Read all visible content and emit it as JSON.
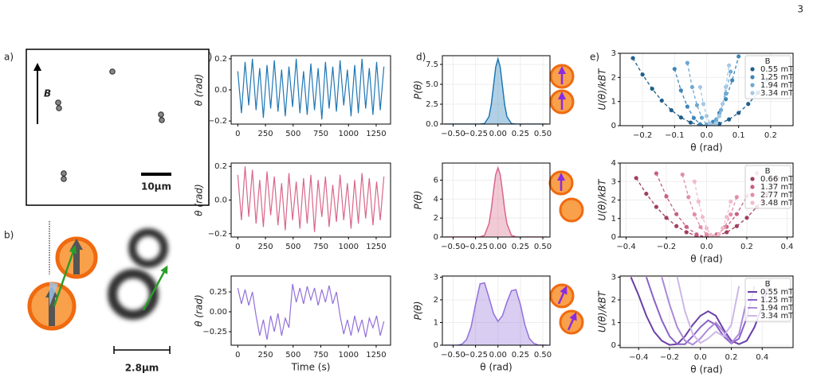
{
  "page_number": "3",
  "panel_labels": [
    "a)",
    "b)",
    "c)",
    "d)",
    "e)"
  ],
  "panel_a": {
    "field_label": "B",
    "scale_label": "10μm"
  },
  "panel_b": {
    "scale_label": "2.8μm"
  },
  "chart_data": [
    {
      "type": "line",
      "color": "#1f77b4",
      "ylabel": "θ (rad)",
      "xlim": [
        -60,
        1380
      ],
      "ylim": [
        -0.22,
        0.22
      ],
      "xticks": [
        0,
        250,
        500,
        750,
        1000,
        1250
      ],
      "yticks": [
        {
          "value": -0.2,
          "label": "−0.2"
        },
        {
          "value": 0,
          "label": "0.0"
        },
        0.2
      ],
      "x": [
        0,
        33,
        66,
        99,
        132,
        165,
        198,
        231,
        264,
        297,
        330,
        363,
        396,
        429,
        462,
        495,
        528,
        561,
        594,
        627,
        660,
        693,
        726,
        759,
        792,
        825,
        858,
        891,
        924,
        957,
        990,
        1023,
        1056,
        1089,
        1122,
        1155,
        1188,
        1221,
        1254,
        1287,
        1320
      ],
      "values": [
        0.12,
        -0.15,
        0.18,
        -0.1,
        0.2,
        -0.13,
        0.14,
        -0.18,
        0.16,
        -0.12,
        0.19,
        -0.14,
        0.13,
        -0.17,
        0.15,
        -0.11,
        0.2,
        -0.15,
        0.12,
        -0.16,
        0.17,
        -0.13,
        0.14,
        -0.19,
        0.18,
        -0.12,
        0.15,
        -0.14,
        0.19,
        -0.1,
        0.13,
        -0.17,
        0.16,
        -0.15,
        0.2,
        -0.12,
        0.14,
        -0.16,
        0.18,
        -0.13,
        0.15
      ]
    },
    {
      "type": "line",
      "color": "#d9668a",
      "ylabel": "θ (rad)",
      "xlim": [
        -60,
        1380
      ],
      "ylim": [
        -0.22,
        0.22
      ],
      "xticks": [
        0,
        250,
        500,
        750,
        1000,
        1250
      ],
      "yticks": [
        {
          "value": -0.2,
          "label": "−0.2"
        },
        {
          "value": 0,
          "label": "0.0"
        },
        0.2
      ],
      "x": [
        0,
        33,
        66,
        99,
        132,
        165,
        198,
        231,
        264,
        297,
        330,
        363,
        396,
        429,
        462,
        495,
        528,
        561,
        594,
        627,
        660,
        693,
        726,
        759,
        792,
        825,
        858,
        891,
        924,
        957,
        990,
        1023,
        1056,
        1089,
        1122,
        1155,
        1188,
        1221,
        1254,
        1287,
        1320
      ],
      "values": [
        0.15,
        -0.12,
        0.2,
        -0.1,
        0.18,
        -0.14,
        0.12,
        -0.16,
        0.17,
        -0.09,
        0.14,
        -0.15,
        0.1,
        -0.18,
        0.16,
        -0.12,
        0.11,
        -0.17,
        0.13,
        -0.14,
        0.15,
        -0.19,
        0.12,
        -0.1,
        0.14,
        -0.16,
        0.09,
        -0.13,
        0.15,
        -0.12,
        0.1,
        -0.17,
        0.12,
        -0.14,
        0.16,
        -0.11,
        0.13,
        -0.15,
        0.11,
        -0.12,
        0.14
      ]
    },
    {
      "type": "line",
      "color": "#9370db",
      "ylabel": "θ (rad)",
      "xlabel": "Time (s)",
      "xlim": [
        -60,
        1380
      ],
      "ylim": [
        -0.42,
        0.45
      ],
      "xticks": [
        0,
        250,
        500,
        750,
        1000,
        1250
      ],
      "yticks": [
        {
          "value": -0.25,
          "label": "−0.25"
        },
        {
          "value": 0,
          "label": "0.00"
        },
        0.25
      ],
      "x": [
        0,
        33,
        66,
        99,
        132,
        165,
        198,
        231,
        264,
        297,
        330,
        363,
        396,
        429,
        462,
        495,
        528,
        561,
        594,
        627,
        660,
        693,
        726,
        759,
        792,
        825,
        858,
        891,
        924,
        957,
        990,
        1023,
        1056,
        1089,
        1122,
        1155,
        1188,
        1221,
        1254,
        1287,
        1320
      ],
      "values": [
        0.3,
        0.1,
        0.28,
        0.08,
        0.25,
        -0.05,
        -0.3,
        -0.1,
        -0.35,
        -0.05,
        -0.25,
        -0.02,
        -0.3,
        -0.08,
        -0.2,
        0.35,
        0.12,
        0.3,
        0.1,
        0.32,
        0.15,
        0.3,
        0.08,
        0.28,
        0.12,
        0.33,
        0.1,
        0.25,
        -0.05,
        -0.28,
        -0.1,
        -0.3,
        -0.05,
        -0.25,
        -0.1,
        -0.32,
        -0.08,
        -0.2,
        -0.05,
        -0.3,
        -0.12
      ]
    },
    {
      "type": "area",
      "color": "#1f77b4",
      "ylabel": "P(θ)",
      "grid": true,
      "xlim": [
        -0.62,
        0.58
      ],
      "ylim": [
        0,
        8.6
      ],
      "xticks": [
        {
          "value": -0.5,
          "label": "−0.50"
        },
        {
          "value": -0.25,
          "label": "−0.25"
        },
        {
          "value": 0,
          "label": "0.00"
        },
        0.25,
        {
          "value": 0.5,
          "label": "0.50"
        }
      ],
      "yticks": [
        {
          "value": 0,
          "label": "0.0"
        },
        2.5,
        {
          "value": 5,
          "label": "5.0"
        },
        7.5
      ],
      "x": [
        -0.6,
        -0.2,
        -0.15,
        -0.1,
        -0.075,
        -0.05,
        -0.025,
        0,
        0.025,
        0.05,
        0.075,
        0.1,
        0.15,
        0.2,
        0.55
      ],
      "values": [
        0,
        0,
        0.06,
        0.94,
        2.42,
        4.78,
        7.16,
        8.2,
        7.16,
        4.78,
        2.42,
        0.94,
        0.06,
        0,
        0
      ]
    },
    {
      "type": "area",
      "color": "#d9668a",
      "ylabel": "P(θ)",
      "grid": true,
      "xlim": [
        -0.62,
        0.58
      ],
      "ylim": [
        0,
        7.8
      ],
      "xticks": [
        {
          "value": -0.5,
          "label": "−0.50"
        },
        {
          "value": -0.25,
          "label": "−0.25"
        },
        {
          "value": 0,
          "label": "0.00"
        },
        0.25,
        {
          "value": 0.5,
          "label": "0.50"
        }
      ],
      "yticks": [
        0,
        2,
        4,
        6
      ],
      "x": [
        -0.6,
        -0.2,
        -0.15,
        -0.1,
        -0.075,
        -0.05,
        -0.025,
        0,
        0.025,
        0.05,
        0.075,
        0.1,
        0.15,
        0.2,
        0.55
      ],
      "values": [
        0,
        0.01,
        0.18,
        1.4,
        2.88,
        4.83,
        6.59,
        7.3,
        6.59,
        4.83,
        2.88,
        1.4,
        0.18,
        0.01,
        0
      ]
    },
    {
      "type": "area",
      "color": "#9370db",
      "ylabel": "P(θ)",
      "xlabel": "θ (rad)",
      "grid": true,
      "xlim": [
        -0.62,
        0.58
      ],
      "ylim": [
        0,
        3.05
      ],
      "xticks": [
        {
          "value": -0.5,
          "label": "−0.50"
        },
        {
          "value": -0.25,
          "label": "−0.25"
        },
        {
          "value": 0,
          "label": "0.00"
        },
        0.25,
        {
          "value": 0.5,
          "label": "0.50"
        }
      ],
      "yticks": [
        0,
        1,
        2,
        3
      ],
      "x": [
        -0.6,
        -0.45,
        -0.4,
        -0.35,
        -0.3,
        -0.25,
        -0.2,
        -0.15,
        -0.1,
        -0.05,
        0,
        0.05,
        0.1,
        0.15,
        0.2,
        0.25,
        0.3,
        0.35,
        0.4,
        0.45,
        0.55
      ],
      "values": [
        0,
        0,
        0.05,
        0.25,
        0.8,
        1.8,
        2.7,
        2.75,
        2.1,
        1.4,
        1.05,
        1.3,
        1.9,
        2.4,
        2.45,
        1.8,
        0.9,
        0.3,
        0.08,
        0.01,
        0
      ]
    },
    {
      "type": "scatter",
      "ylabel": "U(θ)/kBT",
      "xlabel": "θ (rad)",
      "grid": true,
      "legend_title": "B",
      "xlim": [
        -0.27,
        0.27
      ],
      "ylim": [
        0,
        3
      ],
      "xticks": [
        {
          "value": -0.2,
          "label": "−0.2"
        },
        {
          "value": -0.1,
          "label": "−0.1"
        },
        {
          "value": 0,
          "label": "0.0"
        },
        0.1,
        0.2
      ],
      "yticks": [
        0,
        1,
        2,
        3
      ],
      "series": [
        {
          "name": "0.55 mT",
          "color": "#1f5f8b",
          "x": [
            -0.23,
            -0.2,
            -0.17,
            -0.14,
            -0.11,
            -0.08,
            -0.05,
            -0.02,
            0.01,
            0.04,
            0.07,
            0.1,
            0.13,
            0.16,
            0.19
          ],
          "values": [
            2.8,
            2.12,
            1.53,
            1.04,
            0.64,
            0.34,
            0.13,
            0.02,
            0.01,
            0.08,
            0.26,
            0.53,
            0.9,
            1.36,
            1.91
          ]
        },
        {
          "name": "1.25 mT",
          "color": "#3f86b8",
          "x": [
            -0.1,
            -0.08,
            -0.06,
            -0.04,
            -0.02,
            0,
            0.02,
            0.04,
            0.06,
            0.08,
            0.1
          ],
          "values": [
            2.35,
            1.46,
            0.79,
            0.32,
            0.06,
            0.01,
            0.16,
            0.53,
            1.1,
            1.88,
            2.87
          ]
        },
        {
          "name": "1.94 mT",
          "color": "#6fa8d0",
          "x": [
            -0.06,
            -0.045,
            -0.03,
            -0.015,
            0,
            0.015,
            0.03,
            0.045,
            0.06,
            0.075
          ],
          "values": [
            2.6,
            1.6,
            0.85,
            0.33,
            0.05,
            0.01,
            0.21,
            0.65,
            1.33,
            2.24
          ]
        },
        {
          "name": "3.34 mT",
          "color": "#a5c8e4",
          "x": [
            -0.02,
            -0.01,
            0,
            0.01,
            0.02,
            0.03,
            0.04,
            0.05,
            0.06,
            0.07
          ],
          "values": [
            1.6,
            0.9,
            0.4,
            0.1,
            0,
            0.1,
            0.4,
            0.9,
            1.6,
            2.5
          ]
        }
      ]
    },
    {
      "type": "scatter",
      "ylabel": "U(θ)/kBT",
      "xlabel": "θ (rad)",
      "grid": true,
      "legend_title": "B",
      "xlim": [
        -0.43,
        0.43
      ],
      "ylim": [
        0,
        4
      ],
      "xticks": [
        {
          "value": -0.4,
          "label": "−0.4"
        },
        {
          "value": -0.2,
          "label": "−0.2"
        },
        {
          "value": 0,
          "label": "0.0"
        },
        0.2,
        0.4
      ],
      "yticks": [
        0,
        1,
        2,
        3,
        4
      ],
      "series": [
        {
          "name": "0.66 mT",
          "color": "#a0405f",
          "x": [
            -0.35,
            -0.3,
            -0.25,
            -0.2,
            -0.15,
            -0.1,
            -0.05,
            0,
            0.05,
            0.1,
            0.15,
            0.2,
            0.25,
            0.3,
            0.35
          ],
          "values": [
            3.19,
            2.34,
            1.63,
            1.04,
            0.59,
            0.26,
            0.07,
            0,
            0.07,
            0.26,
            0.59,
            1.04,
            1.63,
            2.34,
            3.19
          ]
        },
        {
          "name": "1.37 mT",
          "color": "#c8607f",
          "x": [
            -0.25,
            -0.2,
            -0.15,
            -0.1,
            -0.05,
            0,
            0.05,
            0.1,
            0.15,
            0.2,
            0.25
          ],
          "values": [
            3.44,
            2.2,
            1.24,
            0.55,
            0.14,
            0,
            0.14,
            0.55,
            1.24,
            2.2,
            3.44
          ]
        },
        {
          "name": "2.77 mT",
          "color": "#e08fa8",
          "x": [
            -0.12,
            -0.09,
            -0.06,
            -0.03,
            0,
            0.03,
            0.06,
            0.09,
            0.12,
            0.15
          ],
          "values": [
            3.38,
            2.16,
            1.22,
            0.54,
            0.14,
            0,
            0.14,
            0.54,
            1.22,
            2.16
          ]
        },
        {
          "name": "3.48 mT",
          "color": "#f0bccb",
          "x": [
            -0.06,
            -0.04,
            -0.02,
            0,
            0.02,
            0.04,
            0.06,
            0.08,
            0.1,
            0.12
          ],
          "values": [
            3,
            1.92,
            1.08,
            0.48,
            0.12,
            0,
            0.12,
            0.48,
            1.08,
            1.92
          ]
        }
      ]
    },
    {
      "type": "line",
      "ylabel": "U(θ)/kBT",
      "xlabel": "θ (rad)",
      "grid": true,
      "legend_title": "B",
      "xlim": [
        -0.52,
        0.6
      ],
      "ylim": [
        -0.1,
        3.05
      ],
      "xticks": [
        {
          "value": -0.4,
          "label": "−0.4"
        },
        {
          "value": -0.2,
          "label": "−0.2"
        },
        {
          "value": 0,
          "label": "0.0"
        },
        0.2,
        0.4
      ],
      "yticks": [
        0,
        1,
        2,
        3
      ],
      "series": [
        {
          "name": "0.55 mT",
          "color": "#6a3fa8",
          "x": [
            -0.45,
            -0.4,
            -0.35,
            -0.3,
            -0.25,
            -0.2,
            -0.15,
            -0.1,
            -0.05,
            0,
            0.05,
            0.1,
            0.15,
            0.2,
            0.25,
            0.3,
            0.35,
            0.4,
            0.45
          ],
          "values": [
            3,
            2.2,
            1.3,
            0.6,
            0.2,
            0.02,
            0.05,
            0.4,
            0.9,
            1.3,
            1.5,
            1.3,
            0.7,
            0.2,
            0.05,
            0.2,
            0.8,
            1.7,
            2.9
          ]
        },
        {
          "name": "1.25 mT",
          "color": "#8a63c8",
          "x": [
            -0.35,
            -0.3,
            -0.25,
            -0.2,
            -0.15,
            -0.1,
            -0.05,
            0,
            0.05,
            0.1,
            0.15,
            0.2,
            0.25,
            0.3,
            0.35
          ],
          "values": [
            3,
            2,
            1.1,
            0.4,
            0.05,
            0.05,
            0.4,
            0.8,
            1.1,
            0.9,
            0.4,
            0.08,
            0.3,
            1.2,
            2.6
          ]
        },
        {
          "name": "1.94 mT",
          "color": "#ab8ad8",
          "x": [
            -0.25,
            -0.2,
            -0.15,
            -0.1,
            -0.05,
            0,
            0.05,
            0.1,
            0.15,
            0.2,
            0.25,
            0.3
          ],
          "values": [
            3,
            1.8,
            0.8,
            0.2,
            0.03,
            0.3,
            0.7,
            1,
            0.6,
            0.1,
            0.5,
            2
          ]
        },
        {
          "name": "3.34 mT",
          "color": "#cdb6e8",
          "x": [
            -0.15,
            -0.1,
            -0.05,
            0,
            0.05,
            0.1,
            0.15,
            0.2,
            0.25
          ],
          "values": [
            3,
            1.5,
            0.5,
            0.1,
            0.3,
            0.6,
            0.4,
            0.9,
            2.6
          ]
        }
      ]
    }
  ]
}
